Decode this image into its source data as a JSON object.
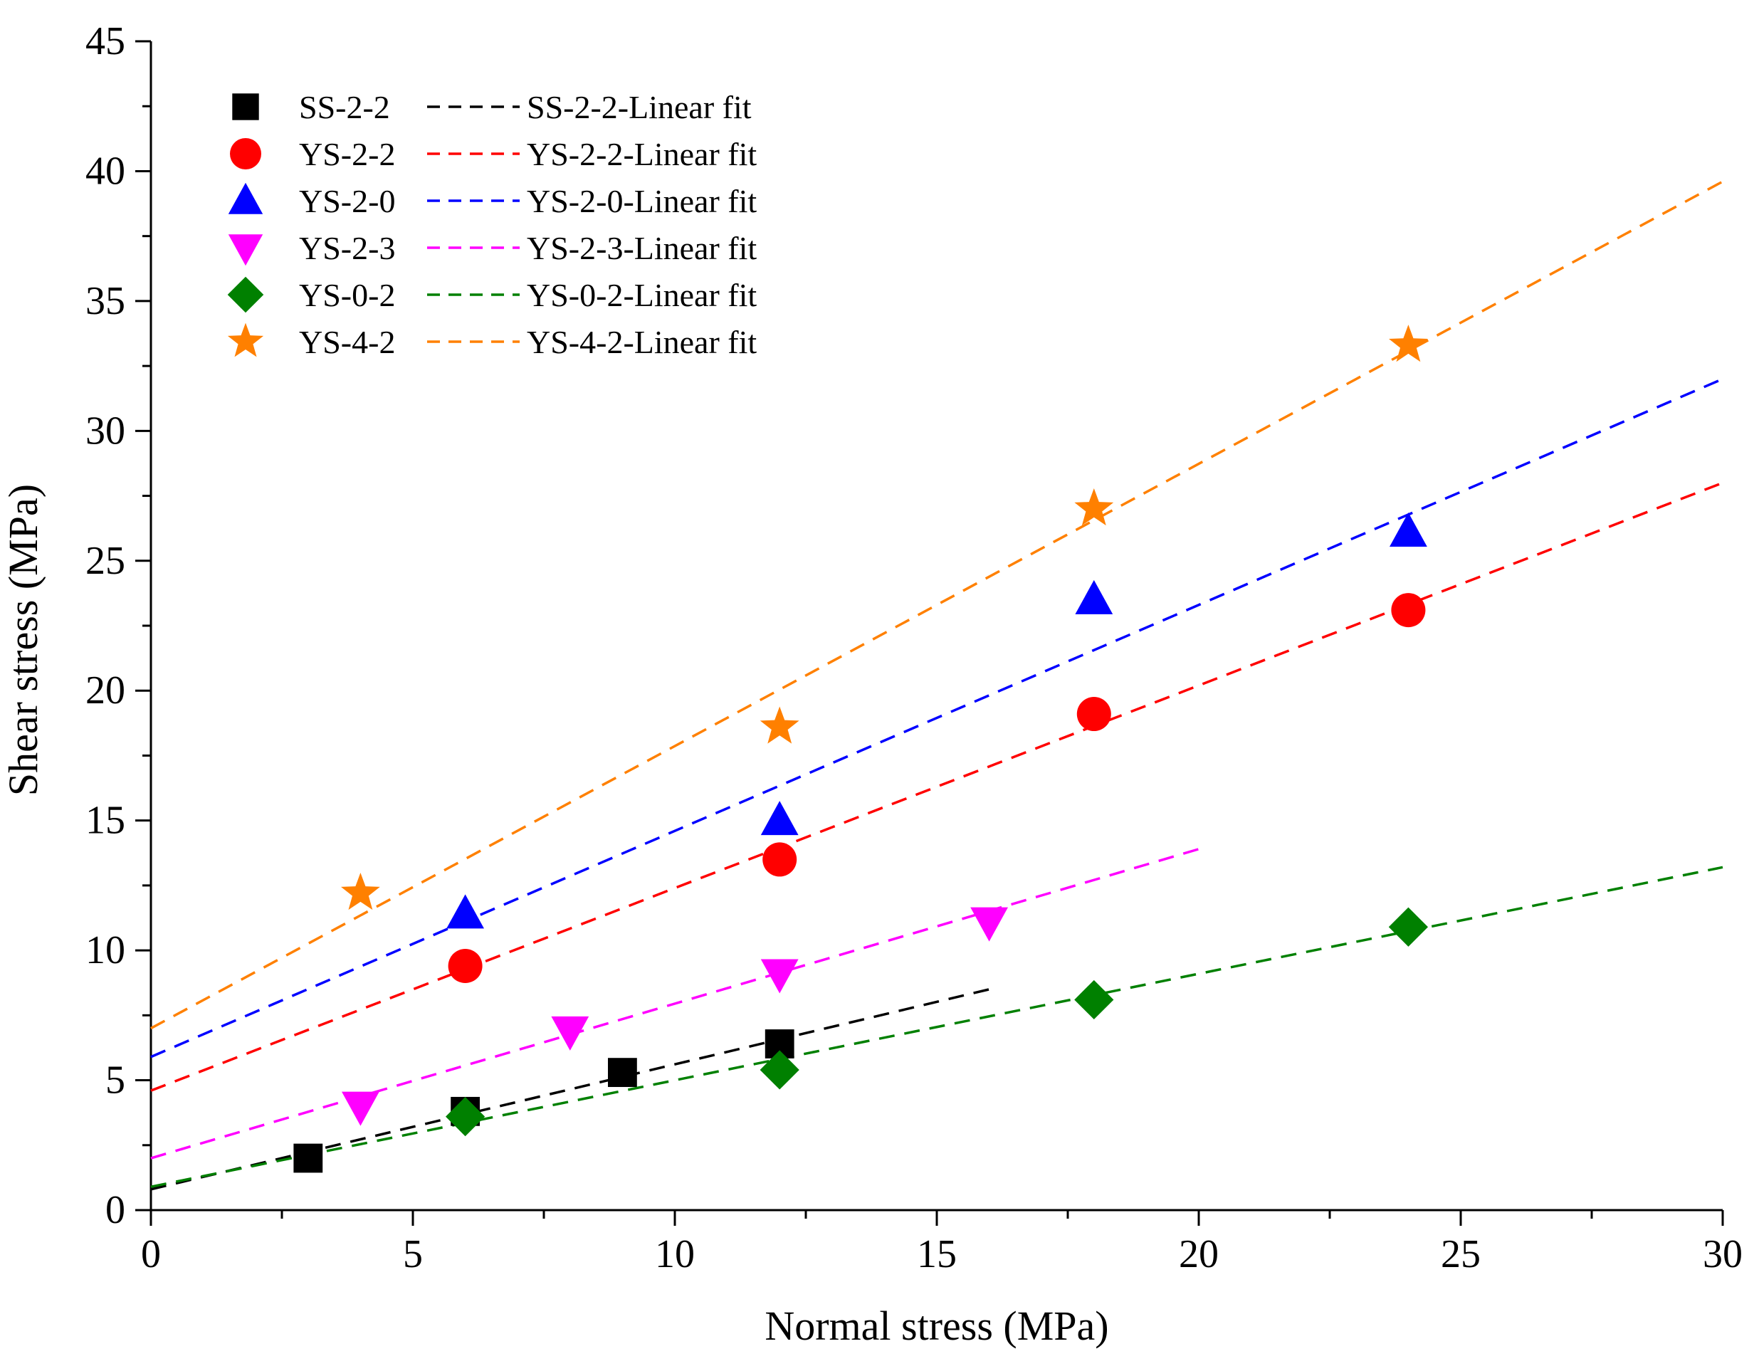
{
  "chart_data": {
    "type": "scatter",
    "title": "",
    "xlabel": "Normal stress (MPa)",
    "ylabel": "Shear stress (MPa)",
    "xlim": [
      0,
      30
    ],
    "ylim": [
      0,
      45
    ],
    "x_ticks": [
      0,
      5,
      10,
      15,
      20,
      25,
      30
    ],
    "y_ticks": [
      0,
      5,
      10,
      15,
      20,
      25,
      30,
      35,
      40,
      45
    ],
    "x_minor_step": 2.5,
    "y_minor_step": 2.5,
    "grid": false,
    "legend_position": "top-left",
    "series": [
      {
        "name": "SS-2-2",
        "fit_name": "SS-2-2-Linear fit",
        "marker": "square",
        "color": "#000000",
        "points": [
          [
            3,
            2.0
          ],
          [
            6,
            3.8
          ],
          [
            9,
            5.3
          ],
          [
            12,
            6.4
          ]
        ],
        "fit": {
          "x_range": [
            0,
            16
          ],
          "y_start": 0.8,
          "y_end": 8.5
        }
      },
      {
        "name": "YS-2-2",
        "fit_name": "YS-2-2-Linear fit",
        "marker": "circle",
        "color": "#ff0000",
        "points": [
          [
            6,
            9.4
          ],
          [
            12,
            13.5
          ],
          [
            18,
            19.1
          ],
          [
            24,
            23.1
          ]
        ],
        "fit": {
          "x_range": [
            0,
            30
          ],
          "y_start": 4.6,
          "y_end": 28.0
        }
      },
      {
        "name": "YS-2-0",
        "fit_name": "YS-2-0-Linear fit",
        "marker": "triangle-up",
        "color": "#0000ff",
        "points": [
          [
            6,
            11.4
          ],
          [
            12,
            15.0
          ],
          [
            18,
            23.5
          ],
          [
            24,
            26.1
          ]
        ],
        "fit": {
          "x_range": [
            0,
            30
          ],
          "y_start": 5.9,
          "y_end": 32.0
        }
      },
      {
        "name": "YS-2-3",
        "fit_name": "YS-2-3-Linear fit",
        "marker": "triangle-down",
        "color": "#ff00ff",
        "points": [
          [
            4,
            4.0
          ],
          [
            8,
            6.9
          ],
          [
            12,
            9.1
          ],
          [
            16,
            11.1
          ]
        ],
        "fit": {
          "x_range": [
            0,
            20
          ],
          "y_start": 2.0,
          "y_end": 13.9
        }
      },
      {
        "name": "YS-0-2",
        "fit_name": "YS-0-2-Linear fit",
        "marker": "diamond",
        "color": "#008000",
        "points": [
          [
            6,
            3.6
          ],
          [
            12,
            5.4
          ],
          [
            18,
            8.1
          ],
          [
            24,
            10.9
          ]
        ],
        "fit": {
          "x_range": [
            0,
            30
          ],
          "y_start": 0.9,
          "y_end": 13.2
        }
      },
      {
        "name": "YS-4-2",
        "fit_name": "YS-4-2-Linear fit",
        "marker": "star",
        "color": "#ff8000",
        "points": [
          [
            4,
            12.2
          ],
          [
            12,
            18.6
          ],
          [
            18,
            27.0
          ],
          [
            24,
            33.3
          ]
        ],
        "fit": {
          "x_range": [
            0,
            30
          ],
          "y_start": 7.0,
          "y_end": 39.6
        }
      }
    ]
  }
}
